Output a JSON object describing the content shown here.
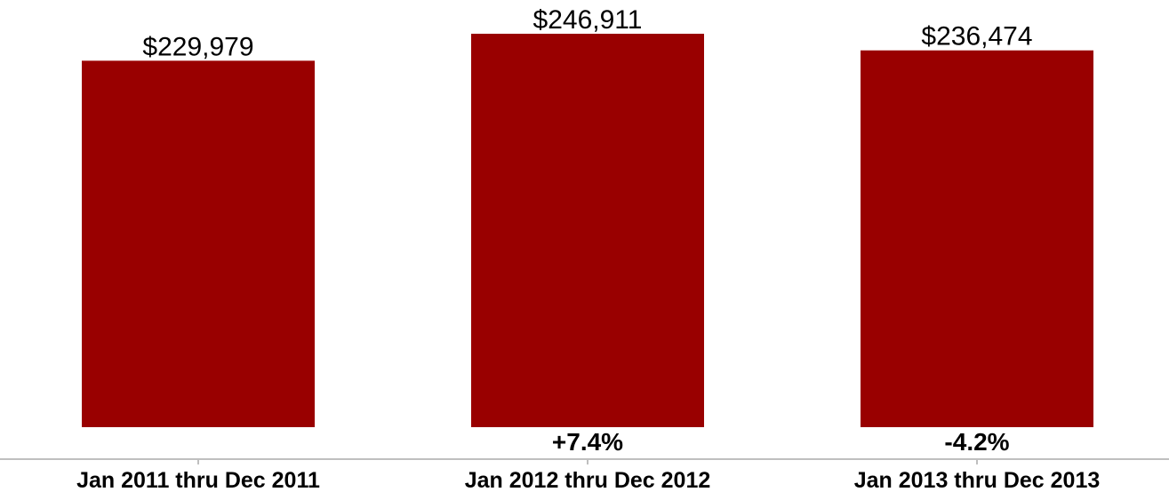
{
  "chart_data": {
    "type": "bar",
    "categories": [
      "Jan 2011 thru Dec 2011",
      "Jan 2012 thru Dec 2012",
      "Jan 2013 thru Dec 2013"
    ],
    "values": [
      229979,
      246911,
      236474
    ],
    "value_labels": [
      "$229,979",
      "$246,911",
      "$236,474"
    ],
    "change_labels": [
      "",
      "+7.4%",
      "-4.2%"
    ],
    "title": "",
    "xlabel": "",
    "ylabel": "",
    "ylim": [
      0,
      246911
    ],
    "grid": false,
    "legend": "none",
    "bar_color": "#990000",
    "axis_color": "#bfbfbf"
  }
}
